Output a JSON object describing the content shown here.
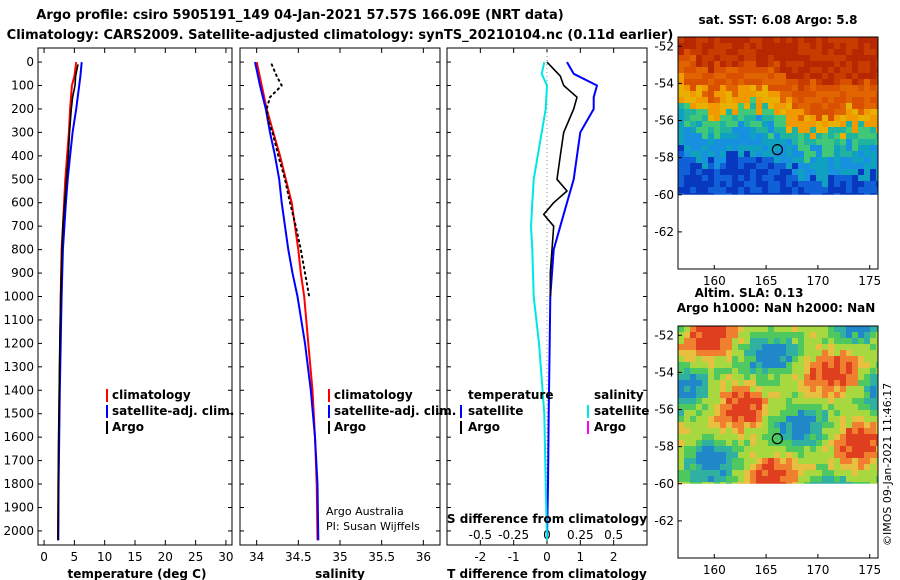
{
  "title": {
    "line1": "Argo profile: csiro 5905191_149 04-Jan-2021 57.57S 166.09E (NRT data)",
    "line2": "Climatology: CARS2009. Satellite-adjusted climatology: synTS_20210104.nc (0.11d earlier)"
  },
  "colors": {
    "climatology": "#ff0000",
    "satellite": "#0000ff",
    "argo": "#000000",
    "sat_salinity": "#00e5e5",
    "argo_salinity": "#ff00ff"
  },
  "depth_ticks": [
    0,
    100,
    200,
    300,
    400,
    500,
    600,
    700,
    800,
    900,
    1000,
    1100,
    1200,
    1300,
    1400,
    1500,
    1600,
    1700,
    1800,
    1900,
    2000
  ],
  "chart_data": [
    {
      "type": "line",
      "panel": "temperature",
      "xlabel": "temperature (deg C)",
      "ylabel": "",
      "xlim": [
        -1,
        31
      ],
      "ylim": [
        2060,
        0
      ],
      "x_ticks": [
        "0",
        "5",
        "10",
        "15",
        "20",
        "25",
        "30"
      ],
      "x_tick_values": [
        0,
        5,
        10,
        15,
        20,
        25,
        30
      ],
      "legend": [
        "climatology",
        "satellite-adj. clim.",
        "Argo"
      ],
      "series": [
        {
          "name": "climatology",
          "depth": [
            0,
            60,
            100,
            200,
            300,
            400,
            500,
            600,
            700,
            800,
            1000,
            1200,
            1400,
            1600,
            1800,
            2040
          ],
          "values": [
            5.3,
            5.0,
            4.6,
            4.3,
            4.1,
            3.8,
            3.5,
            3.3,
            3.1,
            2.9,
            2.75,
            2.65,
            2.55,
            2.45,
            2.35,
            2.3
          ]
        },
        {
          "name": "satellite-adj. clim.",
          "depth": [
            0,
            60,
            100,
            200,
            300,
            400,
            500,
            600,
            700,
            800,
            1000,
            1200,
            1400,
            1600,
            1800,
            2040
          ],
          "values": [
            6.2,
            6.0,
            5.8,
            5.3,
            4.7,
            4.3,
            3.9,
            3.6,
            3.35,
            3.1,
            2.9,
            2.75,
            2.6,
            2.5,
            2.4,
            2.35
          ]
        },
        {
          "name": "Argo",
          "depth": [
            10,
            60,
            100,
            150,
            200,
            300,
            400,
            500,
            600,
            700,
            800,
            900,
            1000,
            1200,
            1400,
            1600,
            1800,
            2040
          ],
          "values": [
            5.6,
            5.2,
            5.1,
            4.7,
            4.5,
            4.2,
            4.0,
            3.7,
            3.4,
            3.1,
            2.95,
            2.85,
            2.75,
            2.6,
            2.5,
            2.4,
            2.35,
            2.3
          ]
        }
      ]
    },
    {
      "type": "line",
      "panel": "salinity",
      "xlabel": "salinity",
      "xlim": [
        33.8,
        36.2
      ],
      "ylim": [
        2060,
        0
      ],
      "x_ticks": [
        "34",
        "34.5",
        "35",
        "35.5",
        "36"
      ],
      "x_tick_values": [
        34,
        34.5,
        35,
        35.5,
        36
      ],
      "legend": [
        "climatology",
        "satellite-adj. clim.",
        "Argo"
      ],
      "series": [
        {
          "name": "climatology",
          "depth": [
            0,
            100,
            200,
            300,
            400,
            500,
            600,
            700,
            800,
            900,
            1000,
            1200,
            1400,
            1600,
            1800,
            2040
          ],
          "values": [
            34.0,
            34.06,
            34.12,
            34.2,
            34.28,
            34.35,
            34.42,
            34.46,
            34.5,
            34.53,
            34.57,
            34.62,
            34.67,
            34.7,
            34.72,
            34.73
          ]
        },
        {
          "name": "satellite-adj. clim.",
          "depth": [
            0,
            100,
            200,
            300,
            400,
            500,
            600,
            700,
            800,
            900,
            1000,
            1200,
            1400,
            1600,
            1800,
            2040
          ],
          "values": [
            33.98,
            34.04,
            34.11,
            34.16,
            34.22,
            34.27,
            34.3,
            34.34,
            34.38,
            34.43,
            34.49,
            34.58,
            34.65,
            34.7,
            34.73,
            34.74
          ]
        },
        {
          "name": "Argo",
          "style": "dotted",
          "depth": [
            10,
            60,
            100,
            150,
            200,
            250,
            300,
            400,
            500,
            600,
            700,
            800,
            900,
            1000
          ],
          "values": [
            34.18,
            34.24,
            34.3,
            34.16,
            34.12,
            34.14,
            34.19,
            34.26,
            34.34,
            34.4,
            34.47,
            34.53,
            34.58,
            34.63
          ]
        }
      ]
    },
    {
      "type": "line",
      "panel": "difference",
      "xlabel": "T difference from climatology",
      "x_label_top": "S difference from climatology",
      "xlim": [
        -3,
        3
      ],
      "ylim": [
        2060,
        0
      ],
      "x_ticks": [
        "-2",
        "-1",
        "0",
        "1",
        "2"
      ],
      "x_tick_values": [
        -2,
        -1,
        0,
        1,
        2
      ],
      "s_ticks": [
        "-0.5",
        "-0.25",
        "0",
        "0.25",
        "0.5"
      ],
      "s_tick_values": [
        -0.5,
        -0.25,
        0,
        0.25,
        0.5
      ],
      "legend_temperature": {
        "header": "temperature",
        "items": [
          "satellite",
          "Argo"
        ]
      },
      "legend_salinity": {
        "header": "salinity",
        "items": [
          "satellite",
          "Argo"
        ]
      },
      "series": [
        {
          "name": "satellite",
          "variable": "T",
          "depth": [
            0,
            50,
            100,
            150,
            200,
            300,
            400,
            500,
            600,
            700,
            800,
            1000,
            1200,
            1500,
            1800,
            2040
          ],
          "values": [
            0.6,
            0.8,
            1.5,
            1.4,
            1.4,
            1.0,
            0.9,
            0.8,
            0.6,
            0.4,
            0.2,
            0.1,
            0.08,
            0.05,
            0.03,
            0.0
          ]
        },
        {
          "name": "Argo",
          "variable": "T",
          "depth": [
            0,
            60,
            100,
            150,
            200,
            300,
            400,
            500,
            550,
            600,
            650,
            700,
            800,
            900,
            1000
          ],
          "values": [
            0.0,
            0.4,
            0.5,
            0.9,
            0.8,
            0.5,
            0.4,
            0.3,
            0.6,
            0.2,
            -0.1,
            0.2,
            0.15,
            0.1,
            0.1
          ]
        },
        {
          "name": "satellite",
          "variable": "S",
          "depth": [
            0,
            50,
            100,
            200,
            300,
            400,
            500,
            600,
            700,
            800,
            1000,
            1200,
            1500,
            1800,
            2040
          ],
          "values": [
            -0.02,
            -0.04,
            0.0,
            -0.01,
            -0.04,
            -0.07,
            -0.1,
            -0.11,
            -0.12,
            -0.11,
            -0.1,
            -0.06,
            -0.02,
            -0.01,
            0.0
          ]
        }
      ]
    }
  ],
  "maps": {
    "sst": {
      "title": "sat. SST: 6.08 Argo: 5.8",
      "lat_ticks": [
        "-52",
        "-54",
        "-56",
        "-58",
        "-60",
        "-62"
      ],
      "lon_ticks": [
        "160",
        "165",
        "170",
        "175"
      ]
    },
    "sla": {
      "title1": "Altim. SLA: 0.13",
      "title2": "Argo h1000: NaN h2000: NaN",
      "lat_ticks": [
        "-52",
        "-54",
        "-56",
        "-58",
        "-60",
        "-62"
      ],
      "lon_ticks": [
        "160",
        "165",
        "170",
        "175"
      ]
    },
    "lat_values": [
      -52,
      -54,
      -56,
      -58,
      -60,
      -62
    ],
    "lon_values": [
      160,
      165,
      170,
      175
    ],
    "argo_position": {
      "lat": -57.57,
      "lon": 166.09
    }
  },
  "credits": {
    "line1": "Argo Australia",
    "line2": "PI: Susan Wijffels",
    "side": "©IMOS 09-Jan-2021 11:46:17"
  }
}
